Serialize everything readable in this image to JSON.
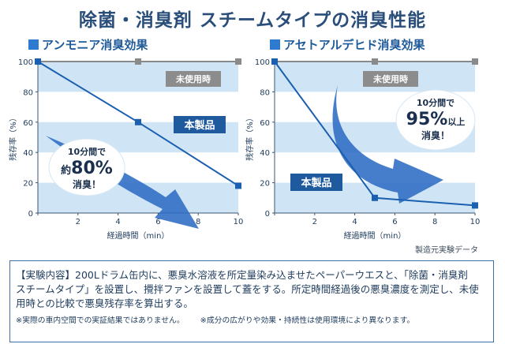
{
  "title": "除菌・消臭剤 スチームタイプの消臭性能",
  "panels": [
    {
      "heading": "アンモニア消臭効果",
      "untreated_label": "未使用時",
      "product_label": "本製品",
      "callout": [
        "10分間で",
        "約",
        "80%",
        "消臭！"
      ]
    },
    {
      "heading": "アセトアルデヒド消臭効果",
      "untreated_label": "未使用時",
      "product_label": "本製品",
      "callout": [
        "10分間で",
        "95%",
        "以上",
        "消臭！"
      ]
    }
  ],
  "source": "製造元実験データ",
  "note": {
    "main": "【実験内容】200Lドラム缶内に、悪臭水溶液を所定量染み込ませたペーパーウエスと、「除菌・消臭剤　スチームタイプ」を設置し、攪拌ファンを設置して蓋をする。所定時間経過後の悪臭濃度を測定し、未使用時との比較で悪臭残存率を算出する。",
    "sub1": "※実際の車内空間での実証結果ではありません。",
    "sub2": "※成分の広がりや効果・持続性は使用環境により異なります。"
  },
  "colors": {
    "band": "#cfe5f6",
    "product_line": "#1b5fb0",
    "untreated_line": "#8a8a8a",
    "arrow": "#2d6cc4",
    "label_badge": "#1f5a9e",
    "untreated_badge": "#8c8c8c"
  },
  "chart_data": [
    {
      "type": "line",
      "title": "アンモニア消臭効果",
      "xlabel": "経過時間（min）",
      "ylabel": "残存率（%）",
      "xlim": [
        0,
        10
      ],
      "ylim": [
        0,
        100
      ],
      "xticks": [
        "0",
        "2",
        "4",
        "6",
        "8",
        "10"
      ],
      "yticks": [
        "0",
        "20",
        "40",
        "60",
        "80",
        "100"
      ],
      "series": [
        {
          "name": "未使用時",
          "x": [
            0,
            5,
            10
          ],
          "y": [
            100,
            100,
            100
          ]
        },
        {
          "name": "本製品",
          "x": [
            0,
            5,
            10
          ],
          "y": [
            100,
            60,
            18
          ]
        }
      ]
    },
    {
      "type": "line",
      "title": "アセトアルデヒド消臭効果",
      "xlabel": "経過時間（min）",
      "ylabel": "残存率（%）",
      "xlim": [
        0,
        10
      ],
      "ylim": [
        0,
        100
      ],
      "xticks": [
        "0",
        "2",
        "4",
        "6",
        "8",
        "10"
      ],
      "yticks": [
        "0",
        "20",
        "40",
        "60",
        "80",
        "100"
      ],
      "series": [
        {
          "name": "未使用時",
          "x": [
            0,
            5,
            10
          ],
          "y": [
            100,
            100,
            100
          ]
        },
        {
          "name": "本製品",
          "x": [
            0,
            5,
            10
          ],
          "y": [
            100,
            10,
            5
          ]
        }
      ]
    }
  ]
}
